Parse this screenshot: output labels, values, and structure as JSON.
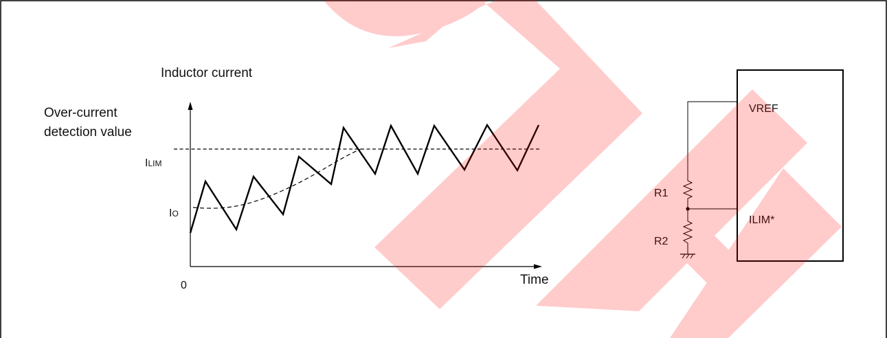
{
  "diagram": {
    "graph": {
      "y_axis_title": "Inductor current",
      "detect_label_line1": "Over-current",
      "detect_label_line2": "detection value",
      "ilim_label_main": "I",
      "ilim_label_sub": "LIM",
      "io_label_main": "I",
      "io_label_sub": "O",
      "origin_label": "0",
      "x_axis_title": "Time"
    },
    "circuit": {
      "vref_label": "VREF",
      "ilim_pin_label": "ILIM*",
      "r1_label": "R1",
      "r2_label": "R2"
    },
    "watermark": {
      "text": "SOFT",
      "color": "#ff0000"
    }
  }
}
